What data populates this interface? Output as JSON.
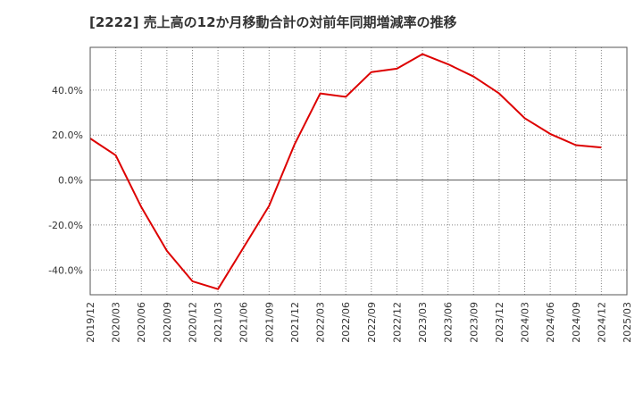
{
  "chart_data": {
    "type": "line",
    "title": "[2222]  売上高の12か月移動合計の対前年同期増減率の推移",
    "xlabel": "",
    "ylabel": "",
    "x": [
      "2019/12",
      "2020/03",
      "2020/06",
      "2020/09",
      "2020/12",
      "2021/03",
      "2021/06",
      "2021/09",
      "2021/12",
      "2022/03",
      "2022/06",
      "2022/09",
      "2022/12",
      "2023/03",
      "2023/06",
      "2023/09",
      "2023/12",
      "2024/03",
      "2024/06",
      "2024/09",
      "2024/12",
      "2025/03"
    ],
    "series": [
      {
        "name": "対前年同期増減率",
        "color": "#dd0000",
        "values": [
          18.5,
          11,
          -12,
          -31.5,
          -45,
          -48.5,
          -30,
          -11.5,
          16,
          38.5,
          37,
          48,
          49.5,
          56,
          51.5,
          46,
          38.5,
          27.5,
          20.5,
          15.5,
          14.5,
          null
        ]
      }
    ],
    "ylim": [
      -51,
      59
    ],
    "yticks": [
      -40,
      -20,
      0,
      20,
      40
    ],
    "ytick_labels": [
      "-40.0%",
      "-20.0%",
      "0.0%",
      "20.0%",
      "40.0%"
    ],
    "grid": true,
    "legend": "none"
  }
}
